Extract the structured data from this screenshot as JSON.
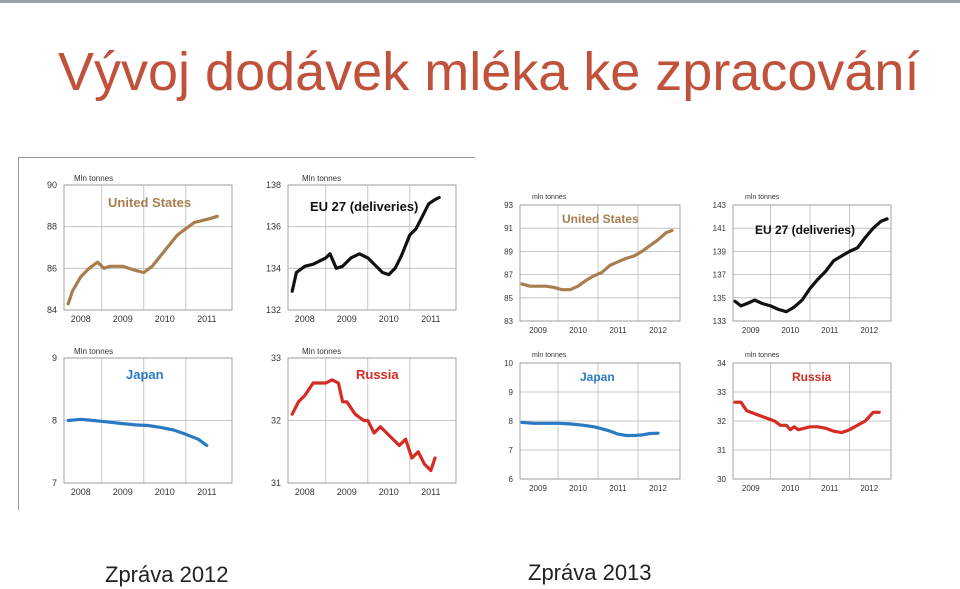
{
  "slide": {
    "title": "Vývoj dodávek mléka ke zpracování",
    "caption_left": "Zpráva 2012",
    "caption_right": "Zpráva 2013"
  },
  "colors": {
    "title": "#c0513a",
    "us": "#a87d4f",
    "eu": "#111111",
    "japan": "#2a7ac3",
    "russia": "#d42b22",
    "grid": "#b9b9b9"
  },
  "chart_data": [
    {
      "type": "line",
      "report": "Zpráva 2012",
      "unit": "Mln tonnes",
      "title": "United States",
      "color": "#a87d4f",
      "x_ticks": [
        "2008",
        "2009",
        "2010",
        "2011"
      ],
      "x_range": [
        2007.6,
        2011.6
      ],
      "ylim": [
        84,
        90
      ],
      "y_ticks": [
        84,
        86,
        88,
        90
      ],
      "series": [
        {
          "x": [
            2007.7,
            2007.8,
            2008.0,
            2008.2,
            2008.4,
            2008.55,
            2008.7,
            2009.0,
            2009.3,
            2009.5,
            2009.7,
            2009.9,
            2010.1,
            2010.3,
            2010.5,
            2010.7,
            2010.9,
            2011.1,
            2011.25
          ],
          "y": [
            84.3,
            84.9,
            85.6,
            86.0,
            86.3,
            86.0,
            86.1,
            86.1,
            85.9,
            85.8,
            86.1,
            86.6,
            87.1,
            87.6,
            87.9,
            88.2,
            88.3,
            88.4,
            88.5
          ]
        }
      ]
    },
    {
      "type": "line",
      "report": "Zpráva 2012",
      "unit": "Mln tonnes",
      "title": "EU 27 (deliveries)",
      "color": "#111111",
      "x_ticks": [
        "2008",
        "2009",
        "2010",
        "2011"
      ],
      "x_range": [
        2007.6,
        2011.6
      ],
      "ylim": [
        132,
        138
      ],
      "y_ticks": [
        132,
        134,
        136,
        138
      ],
      "series": [
        {
          "x": [
            2007.7,
            2007.8,
            2008.0,
            2008.2,
            2008.5,
            2008.6,
            2008.75,
            2008.9,
            2009.1,
            2009.3,
            2009.5,
            2009.7,
            2009.85,
            2010.0,
            2010.15,
            2010.3,
            2010.5,
            2010.65,
            2010.8,
            2010.95,
            2011.1,
            2011.2
          ],
          "y": [
            132.9,
            133.8,
            134.1,
            134.2,
            134.5,
            134.7,
            134.0,
            134.1,
            134.5,
            134.7,
            134.5,
            134.1,
            133.8,
            133.7,
            134.0,
            134.6,
            135.6,
            135.9,
            136.5,
            137.1,
            137.3,
            137.4
          ]
        }
      ]
    },
    {
      "type": "line",
      "report": "Zpráva 2012",
      "unit": "Mln tonnes",
      "title": "Japan",
      "color": "#2a7ac3",
      "x_ticks": [
        "2008",
        "2009",
        "2010",
        "2011"
      ],
      "x_range": [
        2007.6,
        2011.6
      ],
      "ylim": [
        7,
        9
      ],
      "y_ticks": [
        7,
        8,
        9
      ],
      "series": [
        {
          "x": [
            2007.7,
            2008.0,
            2008.3,
            2008.6,
            2009.0,
            2009.3,
            2009.6,
            2009.9,
            2010.2,
            2010.5,
            2010.8,
            2011.0
          ],
          "y": [
            8.0,
            8.02,
            8.0,
            7.98,
            7.95,
            7.93,
            7.92,
            7.89,
            7.85,
            7.78,
            7.7,
            7.6
          ]
        }
      ]
    },
    {
      "type": "line",
      "report": "Zpráva 2012",
      "unit": "Mln tonnes",
      "title": "Russia",
      "color": "#d42b22",
      "x_ticks": [
        "2008",
        "2009",
        "2010",
        "2011"
      ],
      "x_range": [
        2007.6,
        2011.6
      ],
      "ylim": [
        31,
        33
      ],
      "y_ticks": [
        31,
        32,
        33
      ],
      "series": [
        {
          "x": [
            2007.7,
            2007.85,
            2008.0,
            2008.2,
            2008.35,
            2008.5,
            2008.65,
            2008.8,
            2008.9,
            2009.0,
            2009.2,
            2009.4,
            2009.5,
            2009.65,
            2009.8,
            2009.95,
            2010.1,
            2010.25,
            2010.4,
            2010.55,
            2010.7,
            2010.85,
            2011.0,
            2011.1
          ],
          "y": [
            32.1,
            32.3,
            32.4,
            32.6,
            32.6,
            32.6,
            32.65,
            32.6,
            32.3,
            32.3,
            32.1,
            32.0,
            32.0,
            31.8,
            31.9,
            31.8,
            31.7,
            31.6,
            31.7,
            31.4,
            31.5,
            31.3,
            31.2,
            31.4
          ]
        }
      ]
    },
    {
      "type": "line",
      "report": "Zpráva 2013",
      "unit": "mln tonnes",
      "title": "United States",
      "color": "#a87d4f",
      "x_ticks": [
        "2009",
        "2010",
        "2011",
        "2012"
      ],
      "x_range": [
        2008.55,
        2012.55
      ],
      "ylim": [
        83,
        93
      ],
      "y_ticks": [
        83,
        85,
        87,
        89,
        91,
        93
      ],
      "series": [
        {
          "x": [
            2008.6,
            2008.8,
            2009.0,
            2009.2,
            2009.4,
            2009.6,
            2009.8,
            2010.0,
            2010.2,
            2010.4,
            2010.6,
            2010.8,
            2011.0,
            2011.2,
            2011.4,
            2011.6,
            2011.8,
            2012.0,
            2012.2,
            2012.35
          ],
          "y": [
            86.2,
            86.0,
            86.0,
            86.0,
            85.9,
            85.7,
            85.7,
            86.0,
            86.5,
            86.9,
            87.2,
            87.8,
            88.1,
            88.4,
            88.6,
            89.0,
            89.5,
            90.0,
            90.6,
            90.8
          ]
        }
      ]
    },
    {
      "type": "line",
      "report": "Zpráva 2013",
      "unit": "mln tonnes",
      "title": "EU 27 (deliveries)",
      "color": "#111111",
      "x_ticks": [
        "2009",
        "2010",
        "2011",
        "2012"
      ],
      "x_range": [
        2008.55,
        2012.55
      ],
      "ylim": [
        133,
        143
      ],
      "y_ticks": [
        133,
        135,
        137,
        139,
        141,
        143
      ],
      "series": [
        {
          "x": [
            2008.6,
            2008.75,
            2008.9,
            2009.1,
            2009.3,
            2009.5,
            2009.7,
            2009.9,
            2010.1,
            2010.3,
            2010.5,
            2010.7,
            2010.9,
            2011.1,
            2011.3,
            2011.5,
            2011.7,
            2011.9,
            2012.1,
            2012.3,
            2012.45
          ],
          "y": [
            134.7,
            134.3,
            134.5,
            134.8,
            134.5,
            134.3,
            134.0,
            133.8,
            134.2,
            134.8,
            135.8,
            136.6,
            137.3,
            138.2,
            138.6,
            139.0,
            139.3,
            140.2,
            141.0,
            141.6,
            141.8
          ]
        }
      ]
    },
    {
      "type": "line",
      "report": "Zpráva 2013",
      "unit": "mln tonnes",
      "title": "Japan",
      "color": "#2a7ac3",
      "x_ticks": [
        "2009",
        "2010",
        "2011",
        "2012"
      ],
      "x_range": [
        2008.55,
        2012.55
      ],
      "ylim": [
        6,
        10
      ],
      "y_ticks": [
        6,
        7,
        8,
        9,
        10
      ],
      "series": [
        {
          "x": [
            2008.6,
            2008.9,
            2009.2,
            2009.5,
            2009.8,
            2010.1,
            2010.4,
            2010.6,
            2010.8,
            2011.0,
            2011.2,
            2011.4,
            2011.6,
            2011.8,
            2012.0
          ],
          "y": [
            7.95,
            7.92,
            7.92,
            7.92,
            7.9,
            7.86,
            7.8,
            7.73,
            7.65,
            7.55,
            7.5,
            7.5,
            7.52,
            7.57,
            7.58
          ]
        }
      ]
    },
    {
      "type": "line",
      "report": "Zpráva 2013",
      "unit": "mln tonnes",
      "title": "Russia",
      "color": "#d42b22",
      "x_ticks": [
        "2009",
        "2010",
        "2011",
        "2012"
      ],
      "x_range": [
        2008.55,
        2012.55
      ],
      "ylim": [
        30,
        34
      ],
      "y_ticks": [
        30,
        31,
        32,
        33,
        34
      ],
      "series": [
        {
          "x": [
            2008.6,
            2008.75,
            2008.9,
            2009.0,
            2009.2,
            2009.4,
            2009.6,
            2009.75,
            2009.9,
            2010.0,
            2010.1,
            2010.2,
            2010.35,
            2010.5,
            2010.7,
            2010.9,
            2011.1,
            2011.3,
            2011.5,
            2011.7,
            2011.9,
            2012.1,
            2012.25
          ],
          "y": [
            32.65,
            32.65,
            32.35,
            32.3,
            32.2,
            32.1,
            32.0,
            31.85,
            31.85,
            31.7,
            31.8,
            31.7,
            31.75,
            31.8,
            31.8,
            31.75,
            31.65,
            31.6,
            31.7,
            31.85,
            32.0,
            32.3,
            32.3
          ]
        }
      ]
    }
  ]
}
